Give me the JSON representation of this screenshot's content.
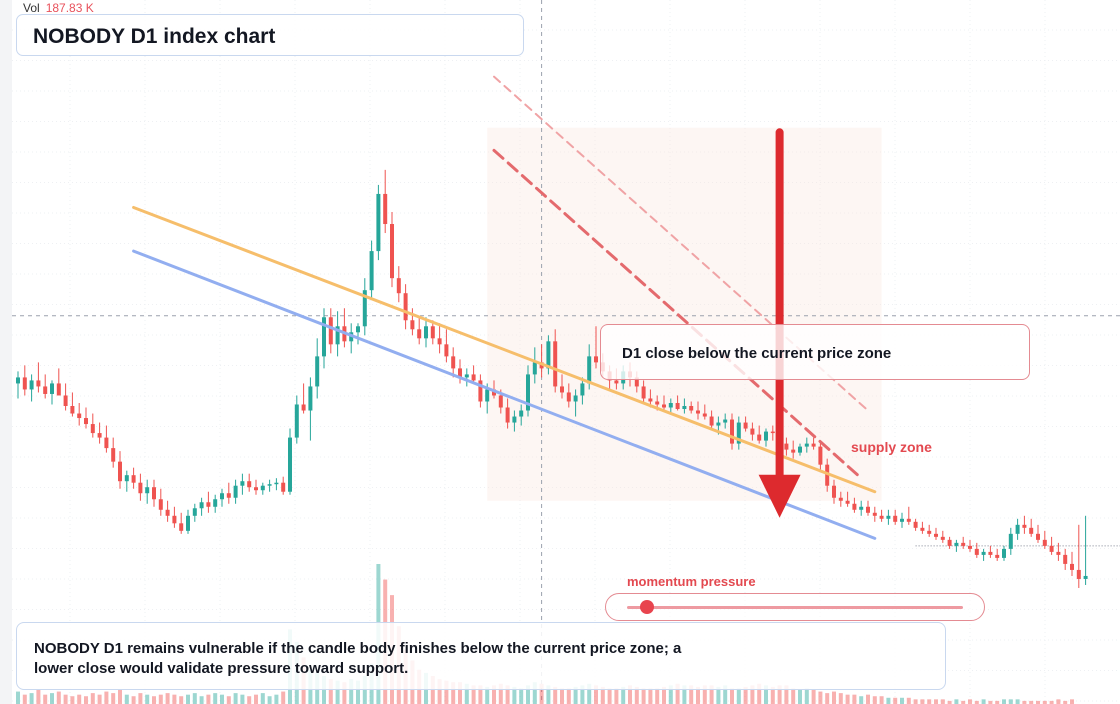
{
  "header": {
    "volume_label": "Vol",
    "volume_value": "187.83 K",
    "title": "NOBODY D1 index chart"
  },
  "annotations": {
    "callout": "D1 close below the current price zone",
    "supply_label": "supply zone",
    "momentum_label": "momentum pressure",
    "momentum_level": 0.06,
    "note": "NOBODY D1 remains vulnerable if the candle body finishes below the current price zone; a lower close would validate pressure toward support."
  },
  "colors": {
    "up": "#26a69a",
    "down": "#ef5350",
    "orange_line": "#f6be6b",
    "blue_line": "#92aef0",
    "red_line": "#e46a6d",
    "arrow": "#dd2a2e"
  },
  "chart_data": {
    "type": "candlestick",
    "candles": [
      {
        "o": 100,
        "h": 108,
        "l": 90,
        "c": 104
      },
      {
        "o": 104,
        "h": 112,
        "l": 92,
        "c": 96
      },
      {
        "o": 96,
        "h": 106,
        "l": 88,
        "c": 102
      },
      {
        "o": 102,
        "h": 114,
        "l": 94,
        "c": 98
      },
      {
        "o": 98,
        "h": 106,
        "l": 90,
        "c": 93
      },
      {
        "o": 93,
        "h": 102,
        "l": 86,
        "c": 100
      },
      {
        "o": 100,
        "h": 110,
        "l": 94,
        "c": 92
      },
      {
        "o": 92,
        "h": 100,
        "l": 82,
        "c": 85
      },
      {
        "o": 85,
        "h": 94,
        "l": 78,
        "c": 80
      },
      {
        "o": 80,
        "h": 87,
        "l": 72,
        "c": 77
      },
      {
        "o": 77,
        "h": 84,
        "l": 70,
        "c": 73
      },
      {
        "o": 73,
        "h": 80,
        "l": 64,
        "c": 67
      },
      {
        "o": 67,
        "h": 74,
        "l": 60,
        "c": 64
      },
      {
        "o": 64,
        "h": 72,
        "l": 54,
        "c": 57
      },
      {
        "o": 57,
        "h": 64,
        "l": 44,
        "c": 48
      },
      {
        "o": 48,
        "h": 55,
        "l": 30,
        "c": 35
      },
      {
        "o": 35,
        "h": 42,
        "l": 28,
        "c": 39
      },
      {
        "o": 39,
        "h": 44,
        "l": 30,
        "c": 34
      },
      {
        "o": 34,
        "h": 40,
        "l": 22,
        "c": 27
      },
      {
        "o": 27,
        "h": 36,
        "l": 20,
        "c": 31
      },
      {
        "o": 31,
        "h": 36,
        "l": 18,
        "c": 23
      },
      {
        "o": 23,
        "h": 30,
        "l": 12,
        "c": 16
      },
      {
        "o": 16,
        "h": 22,
        "l": 8,
        "c": 12
      },
      {
        "o": 12,
        "h": 18,
        "l": 4,
        "c": 7
      },
      {
        "o": 7,
        "h": 14,
        "l": 0,
        "c": 2
      },
      {
        "o": 2,
        "h": 16,
        "l": 0,
        "c": 12
      },
      {
        "o": 12,
        "h": 20,
        "l": 8,
        "c": 17
      },
      {
        "o": 17,
        "h": 24,
        "l": 12,
        "c": 21
      },
      {
        "o": 21,
        "h": 28,
        "l": 14,
        "c": 18
      },
      {
        "o": 18,
        "h": 26,
        "l": 14,
        "c": 23
      },
      {
        "o": 23,
        "h": 30,
        "l": 18,
        "c": 27
      },
      {
        "o": 27,
        "h": 34,
        "l": 20,
        "c": 24
      },
      {
        "o": 24,
        "h": 36,
        "l": 20,
        "c": 32
      },
      {
        "o": 32,
        "h": 40,
        "l": 26,
        "c": 35
      },
      {
        "o": 35,
        "h": 40,
        "l": 28,
        "c": 31
      },
      {
        "o": 31,
        "h": 36,
        "l": 26,
        "c": 29
      },
      {
        "o": 29,
        "h": 34,
        "l": 26,
        "c": 32
      },
      {
        "o": 32,
        "h": 36,
        "l": 28,
        "c": 33
      },
      {
        "o": 33,
        "h": 37,
        "l": 29,
        "c": 34
      },
      {
        "o": 34,
        "h": 38,
        "l": 26,
        "c": 28
      },
      {
        "o": 28,
        "h": 70,
        "l": 26,
        "c": 64
      },
      {
        "o": 64,
        "h": 92,
        "l": 60,
        "c": 86
      },
      {
        "o": 86,
        "h": 100,
        "l": 80,
        "c": 82
      },
      {
        "o": 82,
        "h": 104,
        "l": 62,
        "c": 98
      },
      {
        "o": 98,
        "h": 130,
        "l": 90,
        "c": 118
      },
      {
        "o": 118,
        "h": 150,
        "l": 110,
        "c": 144
      },
      {
        "o": 144,
        "h": 150,
        "l": 120,
        "c": 126
      },
      {
        "o": 126,
        "h": 148,
        "l": 118,
        "c": 138
      },
      {
        "o": 138,
        "h": 150,
        "l": 124,
        "c": 128
      },
      {
        "o": 128,
        "h": 140,
        "l": 120,
        "c": 134
      },
      {
        "o": 134,
        "h": 140,
        "l": 126,
        "c": 138
      },
      {
        "o": 138,
        "h": 170,
        "l": 132,
        "c": 162
      },
      {
        "o": 162,
        "h": 195,
        "l": 156,
        "c": 188
      },
      {
        "o": 188,
        "h": 232,
        "l": 182,
        "c": 226
      },
      {
        "o": 226,
        "h": 242,
        "l": 200,
        "c": 206
      },
      {
        "o": 206,
        "h": 214,
        "l": 164,
        "c": 170
      },
      {
        "o": 170,
        "h": 178,
        "l": 154,
        "c": 160
      },
      {
        "o": 160,
        "h": 166,
        "l": 136,
        "c": 142
      },
      {
        "o": 142,
        "h": 150,
        "l": 132,
        "c": 136
      },
      {
        "o": 136,
        "h": 144,
        "l": 126,
        "c": 130
      },
      {
        "o": 130,
        "h": 144,
        "l": 124,
        "c": 138
      },
      {
        "o": 138,
        "h": 142,
        "l": 126,
        "c": 130
      },
      {
        "o": 130,
        "h": 140,
        "l": 120,
        "c": 126
      },
      {
        "o": 126,
        "h": 136,
        "l": 114,
        "c": 118
      },
      {
        "o": 118,
        "h": 124,
        "l": 104,
        "c": 110
      },
      {
        "o": 110,
        "h": 116,
        "l": 100,
        "c": 104
      },
      {
        "o": 104,
        "h": 110,
        "l": 98,
        "c": 106
      },
      {
        "o": 106,
        "h": 112,
        "l": 100,
        "c": 102
      },
      {
        "o": 102,
        "h": 106,
        "l": 84,
        "c": 88
      },
      {
        "o": 88,
        "h": 100,
        "l": 80,
        "c": 96
      },
      {
        "o": 96,
        "h": 102,
        "l": 90,
        "c": 92
      },
      {
        "o": 92,
        "h": 96,
        "l": 80,
        "c": 84
      },
      {
        "o": 84,
        "h": 90,
        "l": 70,
        "c": 74
      },
      {
        "o": 74,
        "h": 82,
        "l": 68,
        "c": 78
      },
      {
        "o": 78,
        "h": 86,
        "l": 72,
        "c": 82
      },
      {
        "o": 82,
        "h": 112,
        "l": 78,
        "c": 106
      },
      {
        "o": 106,
        "h": 124,
        "l": 100,
        "c": 114
      },
      {
        "o": 114,
        "h": 126,
        "l": 104,
        "c": 110
      },
      {
        "o": 110,
        "h": 132,
        "l": 106,
        "c": 128
      },
      {
        "o": 128,
        "h": 136,
        "l": 94,
        "c": 98
      },
      {
        "o": 98,
        "h": 106,
        "l": 90,
        "c": 94
      },
      {
        "o": 94,
        "h": 100,
        "l": 84,
        "c": 88
      },
      {
        "o": 88,
        "h": 96,
        "l": 78,
        "c": 92
      },
      {
        "o": 92,
        "h": 104,
        "l": 86,
        "c": 100
      },
      {
        "o": 100,
        "h": 126,
        "l": 96,
        "c": 118
      },
      {
        "o": 118,
        "h": 138,
        "l": 110,
        "c": 114
      },
      {
        "o": 114,
        "h": 120,
        "l": 104,
        "c": 108
      },
      {
        "o": 108,
        "h": 112,
        "l": 96,
        "c": 102
      },
      {
        "o": 102,
        "h": 110,
        "l": 96,
        "c": 100
      },
      {
        "o": 100,
        "h": 112,
        "l": 96,
        "c": 108
      },
      {
        "o": 108,
        "h": 114,
        "l": 98,
        "c": 104
      },
      {
        "o": 104,
        "h": 108,
        "l": 94,
        "c": 98
      },
      {
        "o": 98,
        "h": 102,
        "l": 86,
        "c": 90
      },
      {
        "o": 90,
        "h": 96,
        "l": 84,
        "c": 88
      },
      {
        "o": 88,
        "h": 92,
        "l": 82,
        "c": 86
      },
      {
        "o": 86,
        "h": 92,
        "l": 82,
        "c": 84
      },
      {
        "o": 84,
        "h": 90,
        "l": 80,
        "c": 87
      },
      {
        "o": 87,
        "h": 92,
        "l": 82,
        "c": 83
      },
      {
        "o": 83,
        "h": 90,
        "l": 80,
        "c": 85
      },
      {
        "o": 85,
        "h": 88,
        "l": 80,
        "c": 82
      },
      {
        "o": 82,
        "h": 88,
        "l": 76,
        "c": 80
      },
      {
        "o": 80,
        "h": 86,
        "l": 76,
        "c": 78
      },
      {
        "o": 78,
        "h": 82,
        "l": 70,
        "c": 72
      },
      {
        "o": 72,
        "h": 78,
        "l": 66,
        "c": 74
      },
      {
        "o": 74,
        "h": 80,
        "l": 70,
        "c": 76
      },
      {
        "o": 76,
        "h": 80,
        "l": 56,
        "c": 60
      },
      {
        "o": 60,
        "h": 78,
        "l": 56,
        "c": 74
      },
      {
        "o": 74,
        "h": 78,
        "l": 68,
        "c": 70
      },
      {
        "o": 70,
        "h": 74,
        "l": 62,
        "c": 66
      },
      {
        "o": 66,
        "h": 72,
        "l": 60,
        "c": 62
      },
      {
        "o": 62,
        "h": 70,
        "l": 58,
        "c": 68
      },
      {
        "o": 68,
        "h": 72,
        "l": 62,
        "c": 67
      },
      {
        "o": 67,
        "h": 70,
        "l": 58,
        "c": 60
      },
      {
        "o": 60,
        "h": 64,
        "l": 52,
        "c": 56
      },
      {
        "o": 56,
        "h": 62,
        "l": 50,
        "c": 54
      },
      {
        "o": 54,
        "h": 60,
        "l": 52,
        "c": 58
      },
      {
        "o": 58,
        "h": 64,
        "l": 54,
        "c": 60
      },
      {
        "o": 60,
        "h": 64,
        "l": 56,
        "c": 58
      },
      {
        "o": 58,
        "h": 62,
        "l": 42,
        "c": 46
      },
      {
        "o": 46,
        "h": 50,
        "l": 28,
        "c": 32
      },
      {
        "o": 32,
        "h": 36,
        "l": 20,
        "c": 24
      },
      {
        "o": 24,
        "h": 28,
        "l": 18,
        "c": 22
      },
      {
        "o": 22,
        "h": 28,
        "l": 18,
        "c": 20
      },
      {
        "o": 20,
        "h": 24,
        "l": 14,
        "c": 16
      },
      {
        "o": 16,
        "h": 22,
        "l": 12,
        "c": 18
      },
      {
        "o": 18,
        "h": 22,
        "l": 12,
        "c": 14
      },
      {
        "o": 14,
        "h": 18,
        "l": 8,
        "c": 12
      },
      {
        "o": 12,
        "h": 16,
        "l": 8,
        "c": 10
      },
      {
        "o": 10,
        "h": 16,
        "l": 6,
        "c": 12
      },
      {
        "o": 12,
        "h": 16,
        "l": 6,
        "c": 8
      },
      {
        "o": 8,
        "h": 14,
        "l": 4,
        "c": 10
      },
      {
        "o": 10,
        "h": 18,
        "l": 6,
        "c": 8
      },
      {
        "o": 8,
        "h": 10,
        "l": 2,
        "c": 4
      },
      {
        "o": 4,
        "h": 8,
        "l": 0,
        "c": 2
      },
      {
        "o": 2,
        "h": 6,
        "l": -2,
        "c": 0
      },
      {
        "o": 0,
        "h": 4,
        "l": -4,
        "c": -2
      },
      {
        "o": -2,
        "h": 2,
        "l": -6,
        "c": -4
      },
      {
        "o": -4,
        "h": -2,
        "l": -10,
        "c": -8
      },
      {
        "o": -8,
        "h": -4,
        "l": -12,
        "c": -6
      },
      {
        "o": -6,
        "h": -2,
        "l": -10,
        "c": -8
      },
      {
        "o": -8,
        "h": -4,
        "l": -12,
        "c": -10
      },
      {
        "o": -10,
        "h": -6,
        "l": -16,
        "c": -14
      },
      {
        "o": -14,
        "h": -10,
        "l": -18,
        "c": -12
      },
      {
        "o": -12,
        "h": -8,
        "l": -16,
        "c": -14
      },
      {
        "o": -14,
        "h": -10,
        "l": -18,
        "c": -16
      },
      {
        "o": -16,
        "h": -8,
        "l": -18,
        "c": -10
      },
      {
        "o": -10,
        "h": 4,
        "l": -14,
        "c": 0
      },
      {
        "o": 0,
        "h": 10,
        "l": -4,
        "c": 6
      },
      {
        "o": 6,
        "h": 12,
        "l": 0,
        "c": 4
      },
      {
        "o": 4,
        "h": 10,
        "l": -2,
        "c": 0
      },
      {
        "o": 0,
        "h": 6,
        "l": -6,
        "c": -4
      },
      {
        "o": -4,
        "h": 2,
        "l": -10,
        "c": -8
      },
      {
        "o": -8,
        "h": -2,
        "l": -14,
        "c": -12
      },
      {
        "o": -12,
        "h": -6,
        "l": -18,
        "c": -14
      },
      {
        "o": -14,
        "h": -10,
        "l": -24,
        "c": -20
      },
      {
        "o": -20,
        "h": -12,
        "l": -28,
        "c": -24
      },
      {
        "o": -24,
        "h": 6,
        "l": -36,
        "c": -30
      },
      {
        "o": -30,
        "h": 12,
        "l": -34,
        "c": -28
      }
    ],
    "volumes": [
      8,
      6,
      7,
      9,
      6,
      7,
      8,
      6,
      5,
      6,
      5,
      7,
      6,
      8,
      7,
      9,
      6,
      5,
      7,
      6,
      5,
      6,
      7,
      6,
      5,
      6,
      7,
      5,
      6,
      7,
      6,
      5,
      7,
      6,
      5,
      6,
      7,
      5,
      6,
      8,
      48,
      40,
      30,
      22,
      20,
      18,
      16,
      15,
      14,
      16,
      15,
      18,
      26,
      90,
      80,
      70,
      50,
      35,
      28,
      22,
      20,
      18,
      16,
      15,
      14,
      14,
      13,
      12,
      12,
      11,
      12,
      13,
      12,
      11,
      10,
      12,
      14,
      13,
      12,
      11,
      10,
      10,
      11,
      12,
      13,
      12,
      11,
      10,
      10,
      11,
      12,
      11,
      10,
      10,
      10,
      11,
      12,
      13,
      12,
      12,
      11,
      12,
      12,
      11,
      12,
      10,
      10,
      11,
      12,
      13,
      12,
      11,
      12,
      12,
      10,
      9,
      10,
      9,
      8,
      7,
      8,
      7,
      6,
      6,
      5,
      6,
      5,
      5,
      4,
      4,
      4,
      4,
      3,
      3,
      3,
      3,
      3,
      2,
      3,
      2,
      3,
      2,
      3,
      2,
      2,
      3,
      3,
      3,
      2,
      2,
      2,
      2,
      2,
      3,
      2,
      3
    ],
    "trendlines": [
      {
        "style": "solid",
        "color": "orange",
        "from": {
          "i": 17,
          "p": 217
        },
        "to": {
          "i": 126,
          "p": 28
        }
      },
      {
        "style": "solid",
        "color": "blue",
        "from": {
          "i": 17,
          "p": 188
        },
        "to": {
          "i": 126,
          "p": -3
        }
      },
      {
        "style": "dashed",
        "color": "red",
        "from": {
          "i": 70,
          "p": 255
        },
        "to": {
          "i": 124,
          "p": 37
        }
      },
      {
        "style": "dashed",
        "color": "lightred",
        "from": {
          "i": 70,
          "p": 304
        },
        "to": {
          "i": 125,
          "p": 82
        }
      }
    ],
    "supply_zone": {
      "from_i": 69,
      "to_i": 127,
      "top": 270,
      "bottom": 22
    },
    "price_arrow": {
      "i": 112,
      "from": 267,
      "to": 22
    },
    "crosshair": {
      "i": 77,
      "p": 145
    },
    "support_level": -8,
    "ylim": [
      -40,
      335
    ]
  }
}
